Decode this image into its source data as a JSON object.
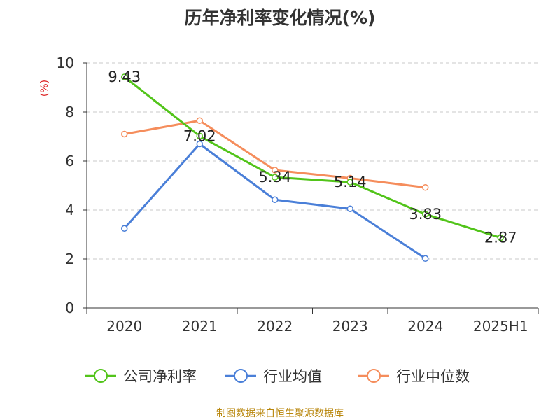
{
  "title": "历年净利率变化情况(%)",
  "source_note": "制图数据来自恒生聚源数据库",
  "chart_data": {
    "type": "line",
    "title": "历年净利率变化情况(%)",
    "ylabel": "(%)",
    "xlabel": "",
    "categories": [
      "2020",
      "2021",
      "2022",
      "2023",
      "2024",
      "2025H1"
    ],
    "ylim": [
      0,
      10
    ],
    "yticks": [
      0,
      2,
      4,
      6,
      8,
      10
    ],
    "grid": true,
    "legend_position": "bottom",
    "series": [
      {
        "name": "公司净利率",
        "color": "#52c41a",
        "values": [
          9.43,
          7.02,
          5.34,
          5.14,
          3.83,
          2.87
        ],
        "labels": [
          "9.43",
          "7.02",
          "5.34",
          "5.14",
          "3.83",
          "2.87"
        ]
      },
      {
        "name": "行业均值",
        "color": "#4a7fd8",
        "values": [
          3.25,
          6.7,
          4.42,
          4.05,
          2.02,
          null
        ]
      },
      {
        "name": "行业中位数",
        "color": "#f58d5c",
        "values": [
          7.1,
          7.65,
          5.63,
          5.3,
          4.92,
          null
        ]
      }
    ]
  }
}
